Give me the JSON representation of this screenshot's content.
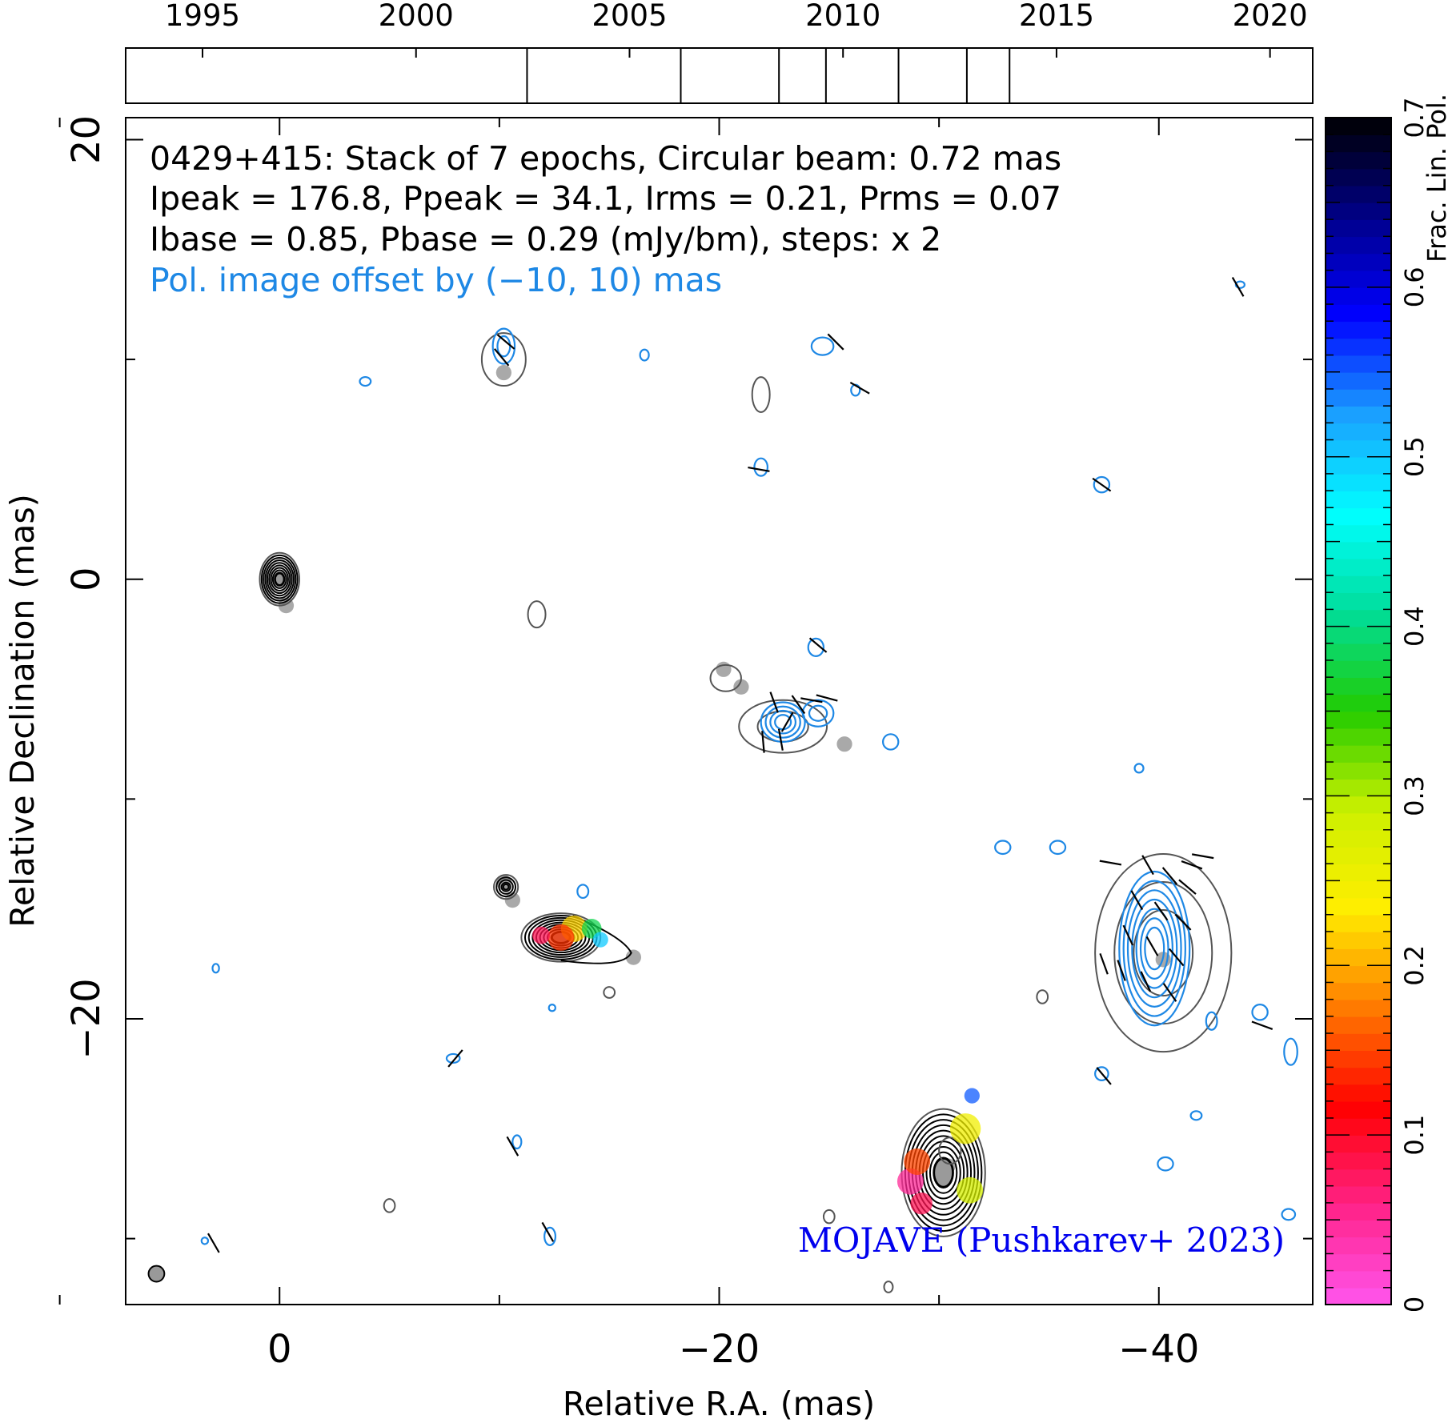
{
  "chart_data": {
    "type": "contour_map",
    "source": "0429+415",
    "header_lines": [
      "0429+415: Stack of 7 epochs, Circular beam: 0.72 mas",
      "Ipeak = 176.8, Ppeak = 34.1, Irms = 0.21, Prms = 0.07",
      "Ibase = 0.85, Pbase = 0.29 (mJy/bm), steps: x 2"
    ],
    "offset_note": "Pol. image offset by (−10, 10) mas",
    "credit": "MOJAVE (Pushkarev+ 2023)",
    "xlabel": "Relative R.A. (mas)",
    "ylabel": "Relative Declination (mas)",
    "xlim": [
      7,
      -47
    ],
    "ylim": [
      -33,
      21
    ],
    "x_ticks": [
      {
        "v": 0,
        "label": "0"
      },
      {
        "v": -20,
        "label": "−20"
      },
      {
        "v": -40,
        "label": "−40"
      }
    ],
    "x_minor": [
      10,
      -10,
      -30
    ],
    "y_ticks": [
      {
        "v": 20,
        "label": "20"
      },
      {
        "v": 0,
        "label": "0"
      },
      {
        "v": -20,
        "label": "−20"
      }
    ],
    "y_minor": [
      10,
      -10,
      -30
    ],
    "epoch_timeline": {
      "xlim": [
        1993.2,
        2021.0
      ],
      "year_ticks": [
        1995,
        2000,
        2005,
        2010,
        2015,
        2020
      ],
      "epochs": [
        2002.6,
        2006.2,
        2008.5,
        2009.6,
        2011.3,
        2012.9,
        2013.9
      ]
    },
    "colorbar": {
      "label": "Frac. Lin. Pol.",
      "range": [
        0,
        0.7
      ],
      "ticks": [
        0,
        0.1,
        0.2,
        0.3,
        0.4,
        0.5,
        0.6,
        0.7
      ],
      "tick_labels": [
        "0",
        "0.1",
        "0.2",
        "0.3",
        "0.4",
        "0.5",
        "0.6",
        "0.7"
      ],
      "colors": [
        "#ff55ee",
        "#ff2288",
        "#ff0000",
        "#ff7a00",
        "#ffee00",
        "#ccf000",
        "#22cc00",
        "#00dd99",
        "#00ffff",
        "#1aa0ff",
        "#0000ff",
        "#000088",
        "#000000"
      ]
    },
    "beam": {
      "x": 5.6,
      "y": -31.6,
      "diameter_mas": 0.72
    },
    "intensity_components": [
      {
        "x": 0.0,
        "y": 0.0,
        "rx": 0.9,
        "ry": 1.2,
        "levels": 9,
        "fp": "#cc00cc"
      },
      {
        "x": -10.3,
        "y": -14.0,
        "rx": 0.55,
        "ry": 0.55,
        "levels": 4
      },
      {
        "x": -12.8,
        "y": -16.3,
        "rx": 1.8,
        "ry": 1.1,
        "levels": 9,
        "tail": [
          -16,
          -17
        ],
        "fp": "#ffcc00"
      },
      {
        "x": -30.2,
        "y": -27.0,
        "rx": 1.9,
        "ry": 2.9,
        "levels": 10,
        "fp": "#ffee00"
      },
      {
        "x": -40.2,
        "y": -17.0,
        "rx": 3.1,
        "ry": 4.5,
        "levels": 3
      },
      {
        "x": -22.9,
        "y": -6.7,
        "rx": 2.0,
        "ry": 1.2,
        "levels": 2
      },
      {
        "x": -20.3,
        "y": -4.5,
        "rx": 0.7,
        "ry": 0.6,
        "levels": 1
      },
      {
        "x": -10.2,
        "y": 10.0,
        "rx": 1.0,
        "ry": 1.2,
        "levels": 1
      },
      {
        "x": -21.9,
        "y": 8.4,
        "rx": 0.4,
        "ry": 0.8,
        "levels": 1
      },
      {
        "x": -11.7,
        "y": -1.6,
        "rx": 0.4,
        "ry": 0.6,
        "levels": 1
      },
      {
        "x": -30.5,
        "y": -26.0,
        "rx": 0.5,
        "ry": 0.6,
        "levels": 1
      },
      {
        "x": -5.0,
        "y": -28.5,
        "rx": 0.25,
        "ry": 0.3,
        "levels": 1
      },
      {
        "x": -25.0,
        "y": -29.0,
        "rx": 0.25,
        "ry": 0.3,
        "levels": 1
      },
      {
        "x": -27.7,
        "y": -32.2,
        "rx": 0.2,
        "ry": 0.25,
        "levels": 1
      },
      {
        "x": -34.7,
        "y": -19.0,
        "rx": 0.25,
        "ry": 0.3,
        "levels": 1
      },
      {
        "x": -15.0,
        "y": -18.8,
        "rx": 0.25,
        "ry": 0.25,
        "levels": 1
      }
    ],
    "polarization_components": [
      {
        "x": -39.8,
        "y": -16.8,
        "rx": 1.6,
        "ry": 3.5,
        "levels": 7
      },
      {
        "x": -22.9,
        "y": -6.5,
        "rx": 1.0,
        "ry": 0.9,
        "levels": 4
      },
      {
        "x": -24.5,
        "y": -6.1,
        "rx": 0.7,
        "ry": 0.6,
        "levels": 2
      },
      {
        "x": -10.2,
        "y": 10.6,
        "rx": 0.5,
        "ry": 0.8,
        "levels": 2
      },
      {
        "x": -24.7,
        "y": 10.6,
        "rx": 0.5,
        "ry": 0.4,
        "levels": 1
      },
      {
        "x": -21.9,
        "y": 5.1,
        "rx": 0.3,
        "ry": 0.4,
        "levels": 1
      },
      {
        "x": -37.4,
        "y": 4.3,
        "rx": 0.35,
        "ry": 0.35,
        "levels": 1
      },
      {
        "x": -24.4,
        "y": -3.1,
        "rx": 0.35,
        "ry": 0.4,
        "levels": 1
      },
      {
        "x": -27.8,
        "y": -7.4,
        "rx": 0.35,
        "ry": 0.35,
        "levels": 1
      },
      {
        "x": -32.9,
        "y": -12.2,
        "rx": 0.35,
        "ry": 0.3,
        "levels": 1
      },
      {
        "x": -35.4,
        "y": -12.2,
        "rx": 0.35,
        "ry": 0.3,
        "levels": 1
      },
      {
        "x": -13.8,
        "y": -14.2,
        "rx": 0.25,
        "ry": 0.3,
        "levels": 1
      },
      {
        "x": -44.6,
        "y": -19.7,
        "rx": 0.35,
        "ry": 0.35,
        "levels": 1
      },
      {
        "x": -42.4,
        "y": -20.1,
        "rx": 0.25,
        "ry": 0.4,
        "levels": 1
      },
      {
        "x": -46.0,
        "y": -21.5,
        "rx": 0.3,
        "ry": 0.6,
        "levels": 1
      },
      {
        "x": -37.4,
        "y": -22.5,
        "rx": 0.3,
        "ry": 0.3,
        "levels": 1
      },
      {
        "x": -39.1,
        "y": -8.6,
        "rx": 0.2,
        "ry": 0.2,
        "levels": 1
      },
      {
        "x": -40.3,
        "y": -26.6,
        "rx": 0.35,
        "ry": 0.3,
        "levels": 1
      },
      {
        "x": -41.7,
        "y": -24.4,
        "rx": 0.25,
        "ry": 0.2,
        "levels": 1
      },
      {
        "x": -45.9,
        "y": -28.9,
        "rx": 0.3,
        "ry": 0.25,
        "levels": 1
      },
      {
        "x": -3.9,
        "y": 9.0,
        "rx": 0.25,
        "ry": 0.2,
        "levels": 1
      },
      {
        "x": -16.6,
        "y": 10.2,
        "rx": 0.2,
        "ry": 0.25,
        "levels": 1
      },
      {
        "x": -26.2,
        "y": 8.6,
        "rx": 0.2,
        "ry": 0.25,
        "levels": 1
      },
      {
        "x": -7.9,
        "y": -21.8,
        "rx": 0.3,
        "ry": 0.2,
        "levels": 1
      },
      {
        "x": -10.8,
        "y": -25.6,
        "rx": 0.2,
        "ry": 0.3,
        "levels": 1
      },
      {
        "x": -12.3,
        "y": -29.9,
        "rx": 0.25,
        "ry": 0.4,
        "levels": 1
      },
      {
        "x": -12.4,
        "y": -19.5,
        "rx": 0.15,
        "ry": 0.15,
        "levels": 1
      },
      {
        "x": 2.9,
        "y": -17.7,
        "rx": 0.15,
        "ry": 0.2,
        "levels": 1
      },
      {
        "x": 3.4,
        "y": -30.1,
        "rx": 0.15,
        "ry": 0.15,
        "levels": 1
      },
      {
        "x": -43.7,
        "y": 13.4,
        "rx": 0.2,
        "ry": 0.15,
        "levels": 1
      }
    ],
    "evpa_ticks": [
      {
        "x": -10.3,
        "y": 10.8,
        "a": 50
      },
      {
        "x": -10.1,
        "y": 10.1,
        "a": 40
      },
      {
        "x": -25.3,
        "y": 10.8,
        "a": 45
      },
      {
        "x": -26.4,
        "y": 8.7,
        "a": 60
      },
      {
        "x": -21.8,
        "y": 5.0,
        "a": 80
      },
      {
        "x": -37.4,
        "y": 4.3,
        "a": 55
      },
      {
        "x": -24.5,
        "y": -3.0,
        "a": 50
      },
      {
        "x": -43.6,
        "y": 13.3,
        "a": 30
      },
      {
        "x": -22.5,
        "y": -5.6,
        "a": 20
      },
      {
        "x": -23.6,
        "y": -5.7,
        "a": 35
      },
      {
        "x": -24.2,
        "y": -5.5,
        "a": 80
      },
      {
        "x": -24.9,
        "y": -5.4,
        "a": 75
      },
      {
        "x": -23.1,
        "y": -6.5,
        "a": -30
      },
      {
        "x": -22.8,
        "y": -7.3,
        "a": 10
      },
      {
        "x": -22.0,
        "y": -7.4,
        "a": 5
      },
      {
        "x": -39.5,
        "y": -13.0,
        "a": 30
      },
      {
        "x": -40.5,
        "y": -13.5,
        "a": 40
      },
      {
        "x": -41.3,
        "y": -14.0,
        "a": 50
      },
      {
        "x": -39.0,
        "y": -14.6,
        "a": 30
      },
      {
        "x": -40.1,
        "y": -15.1,
        "a": 35
      },
      {
        "x": -41.1,
        "y": -15.6,
        "a": 45
      },
      {
        "x": -38.6,
        "y": -16.2,
        "a": 25
      },
      {
        "x": -39.7,
        "y": -16.7,
        "a": 30
      },
      {
        "x": -40.8,
        "y": -17.2,
        "a": 40
      },
      {
        "x": -38.3,
        "y": -17.8,
        "a": 20
      },
      {
        "x": -39.4,
        "y": -18.3,
        "a": 25
      },
      {
        "x": -40.5,
        "y": -18.8,
        "a": 35
      },
      {
        "x": -41.5,
        "y": -13.0,
        "a": 70
      },
      {
        "x": -42.0,
        "y": -12.6,
        "a": 80
      },
      {
        "x": -37.8,
        "y": -12.9,
        "a": 80
      },
      {
        "x": -37.5,
        "y": -17.5,
        "a": 20
      },
      {
        "x": -44.7,
        "y": -20.3,
        "a": 70
      },
      {
        "x": -37.5,
        "y": -22.6,
        "a": 40
      },
      {
        "x": -8.0,
        "y": -21.8,
        "a": -40
      },
      {
        "x": -10.6,
        "y": -25.8,
        "a": 30
      },
      {
        "x": -12.2,
        "y": -29.7,
        "a": 30
      },
      {
        "x": 3.0,
        "y": -30.2,
        "a": 30
      }
    ],
    "fractional_pol_spots": [
      {
        "x": -28.7,
        "y": -27.4,
        "r": 0.6,
        "v": 0.05
      },
      {
        "x": -29.2,
        "y": -28.4,
        "r": 0.5,
        "v": 0.08
      },
      {
        "x": -29.0,
        "y": -26.5,
        "r": 0.6,
        "v": 0.15
      },
      {
        "x": -31.2,
        "y": -25.0,
        "r": 0.7,
        "v": 0.25
      },
      {
        "x": -31.4,
        "y": -27.8,
        "r": 0.6,
        "v": 0.28
      },
      {
        "x": -31.5,
        "y": -23.5,
        "r": 0.35,
        "v": 0.55
      },
      {
        "x": -13.4,
        "y": -15.9,
        "r": 0.6,
        "v": 0.22
      },
      {
        "x": -14.2,
        "y": -15.9,
        "r": 0.45,
        "v": 0.38
      },
      {
        "x": -14.6,
        "y": -16.4,
        "r": 0.35,
        "v": 0.5
      },
      {
        "x": -12.8,
        "y": -16.3,
        "r": 0.6,
        "v": 0.14
      },
      {
        "x": -11.9,
        "y": -16.2,
        "r": 0.4,
        "v": 0.08
      }
    ],
    "modelfit_components": [
      {
        "x": 0.0,
        "y": 0.0
      },
      {
        "x": -0.3,
        "y": -1.2
      },
      {
        "x": -10.2,
        "y": -13.8
      },
      {
        "x": -10.6,
        "y": -14.6
      },
      {
        "x": -12.8,
        "y": -16.3
      },
      {
        "x": -16.1,
        "y": -17.2
      },
      {
        "x": -20.2,
        "y": -4.1
      },
      {
        "x": -21.0,
        "y": -4.9
      },
      {
        "x": -25.7,
        "y": -7.5
      },
      {
        "x": -10.2,
        "y": 9.4
      },
      {
        "x": -30.4,
        "y": -26.7
      },
      {
        "x": -40.2,
        "y": -17.3
      }
    ]
  }
}
